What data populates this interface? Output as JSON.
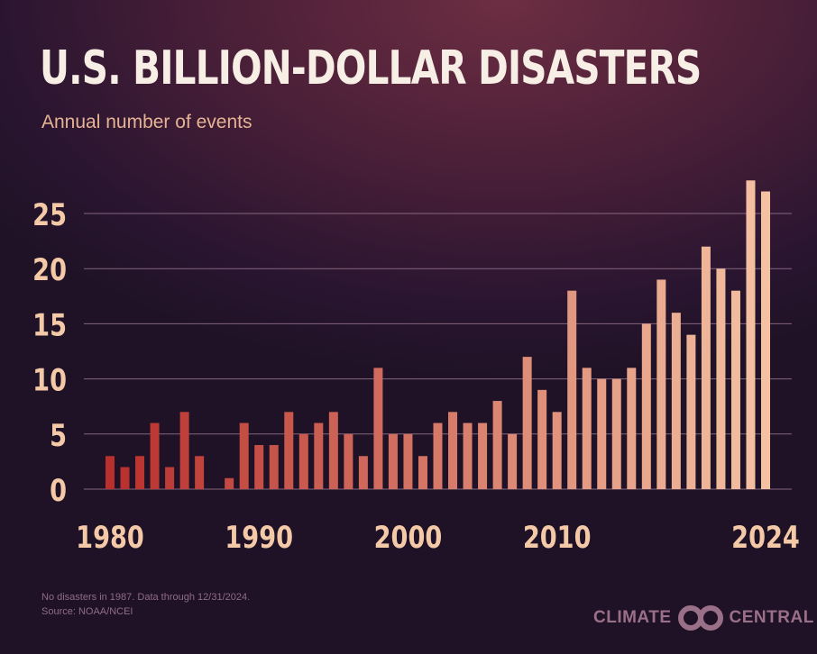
{
  "chart_data": {
    "type": "bar",
    "title": "U.S. BILLION-DOLLAR DISASTERS",
    "subtitle": "Annual number of events",
    "xlabel": "",
    "ylabel": "",
    "ylim": [
      0,
      28
    ],
    "yticks": [
      0,
      5,
      10,
      15,
      20,
      25
    ],
    "xtick_labels": [
      {
        "year": 1980,
        "label": "1980"
      },
      {
        "year": 1990,
        "label": "1990"
      },
      {
        "year": 2000,
        "label": "2000"
      },
      {
        "year": 2010,
        "label": "2010"
      },
      {
        "year": 2024,
        "label": "2024"
      }
    ],
    "grid": true,
    "categories": [
      1980,
      1981,
      1982,
      1983,
      1984,
      1985,
      1986,
      1987,
      1988,
      1989,
      1990,
      1991,
      1992,
      1993,
      1994,
      1995,
      1996,
      1997,
      1998,
      1999,
      2000,
      2001,
      2002,
      2003,
      2004,
      2005,
      2006,
      2007,
      2008,
      2009,
      2010,
      2011,
      2012,
      2013,
      2014,
      2015,
      2016,
      2017,
      2018,
      2019,
      2020,
      2021,
      2022,
      2023,
      2024
    ],
    "values": [
      3,
      2,
      3,
      6,
      2,
      7,
      3,
      0,
      1,
      6,
      4,
      4,
      7,
      5,
      6,
      7,
      5,
      3,
      11,
      5,
      5,
      3,
      6,
      7,
      6,
      6,
      8,
      5,
      12,
      9,
      7,
      18,
      11,
      10,
      10,
      11,
      15,
      19,
      16,
      14,
      22,
      20,
      18,
      28,
      27
    ],
    "colors": {
      "start": "#b82f2c",
      "end": "#f4c2a3",
      "tick": "#f3c9a8",
      "grid": "#9c7a92"
    }
  },
  "footnote": {
    "line1": "No disasters in 1987. Data through 12/31/2024.",
    "line2": "Source: NOAA/NCEI"
  },
  "logo": {
    "left": "CLIMATE",
    "right": "CENTRAL"
  }
}
